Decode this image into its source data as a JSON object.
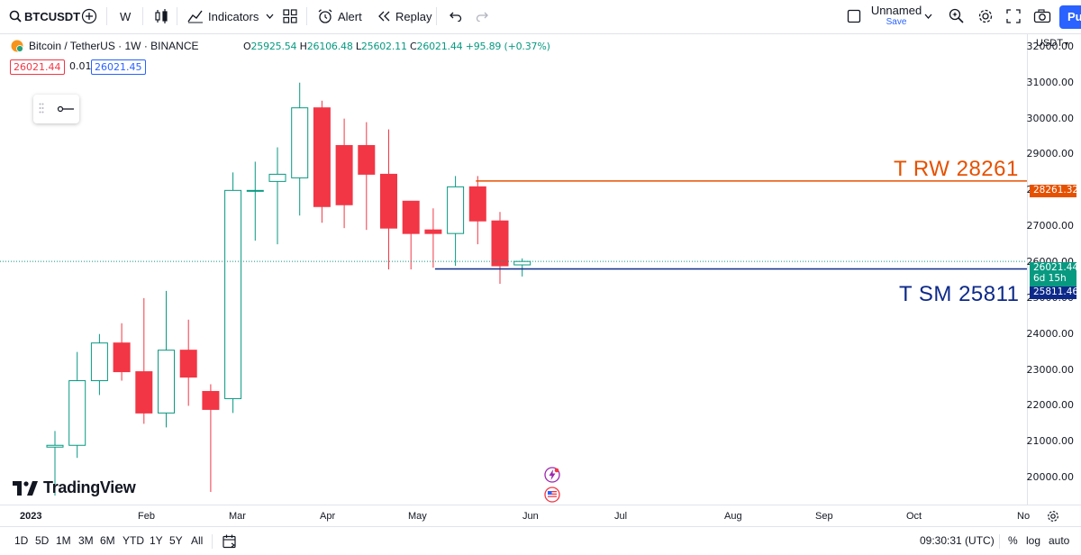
{
  "toolbar": {
    "symbol": "BTCUSDT",
    "interval": "W",
    "indicators": "Indicators",
    "alert": "Alert",
    "replay": "Replay",
    "layout_name": "Unnamed",
    "save": "Save",
    "publish": "Pu"
  },
  "legend": {
    "title": "Bitcoin / TetherUS · 1W · BINANCE",
    "open_label": "O",
    "open": "25925.54",
    "high_label": "H",
    "high": "26106.48",
    "low_label": "L",
    "low": "25602.11",
    "close_label": "C",
    "close": "26021.44",
    "change": "+95.89 (+0.37%)",
    "sell": "26021.44",
    "spread": "0.01",
    "buy": "26021.45"
  },
  "watermark": "TradingView",
  "price_axis": {
    "currency": "USDT",
    "ticks": [
      "32000.00",
      "31000.00",
      "30000.00",
      "29000.00",
      "28000.00",
      "27000.00",
      "26000.00",
      "25000.00",
      "24000.00",
      "23000.00",
      "22000.00",
      "21000.00",
      "20000.00"
    ],
    "tag_rw": "28261.32",
    "tag_last": "26021.44",
    "tag_countdown": "6d 15h",
    "tag_sm": "25811.46"
  },
  "time_axis": [
    "2023",
    "Feb",
    "Mar",
    "Apr",
    "May",
    "Jun",
    "Jul",
    "Aug",
    "Sep",
    "Oct",
    "No"
  ],
  "ranges": [
    "1D",
    "5D",
    "1M",
    "3M",
    "6M",
    "YTD",
    "1Y",
    "5Y",
    "All"
  ],
  "bottom_right": {
    "clock": "09:30:31 (UTC)",
    "percent": "%",
    "log": "log",
    "auto": "auto"
  },
  "annotations": {
    "rw": "T RW 28261",
    "sm": "T SM 25811"
  },
  "colors": {
    "up": "#089981",
    "down": "#f23645",
    "rw": "#e65100",
    "sm": "#0d2a8a",
    "accent": "#2962ff"
  },
  "chart_data": {
    "type": "candlestick",
    "x": [
      "2023-01-16",
      "2023-01-23",
      "2023-01-30",
      "2023-02-06",
      "2023-02-13",
      "2023-02-20",
      "2023-02-27",
      "2023-03-06",
      "2023-03-13",
      "2023-03-20",
      "2023-03-27",
      "2023-04-03",
      "2023-04-10",
      "2023-04-17",
      "2023-04-24",
      "2023-05-01",
      "2023-05-08",
      "2023-05-15",
      "2023-05-22",
      "2023-05-29",
      "2023-06-05",
      "2023-06-12"
    ],
    "open": [
      20850,
      20900,
      22700,
      23750,
      22950,
      21800,
      23550,
      22400,
      22200,
      28000,
      28250,
      28350,
      30300,
      29250,
      29250,
      28450,
      27700,
      26900,
      26800,
      28100,
      27150,
      25925.54
    ],
    "high": [
      21300,
      23500,
      24000,
      24300,
      25000,
      25200,
      24400,
      22600,
      28500,
      28800,
      29200,
      31000,
      30500,
      30000,
      29900,
      29700,
      27700,
      27500,
      28400,
      28400,
      27400,
      26106.48
    ],
    "low": [
      19500,
      20550,
      22300,
      22700,
      21500,
      21400,
      22000,
      19600,
      21800,
      26600,
      26500,
      27300,
      27100,
      26950,
      26900,
      25800,
      25800,
      25850,
      25900,
      26500,
      25400,
      25602.11
    ],
    "close": [
      20900,
      22700,
      23750,
      22950,
      21800,
      23550,
      22800,
      21900,
      28000,
      28000,
      28450,
      30300,
      27550,
      27600,
      28450,
      26950,
      26800,
      26800,
      28100,
      27150,
      25900,
      26021.44
    ],
    "ylim": [
      19250,
      32350
    ],
    "hlines": [
      {
        "name": "T RW",
        "value": 28261.32
      },
      {
        "name": "T SM",
        "value": 25811.46
      }
    ],
    "last_price": 26021.44
  }
}
